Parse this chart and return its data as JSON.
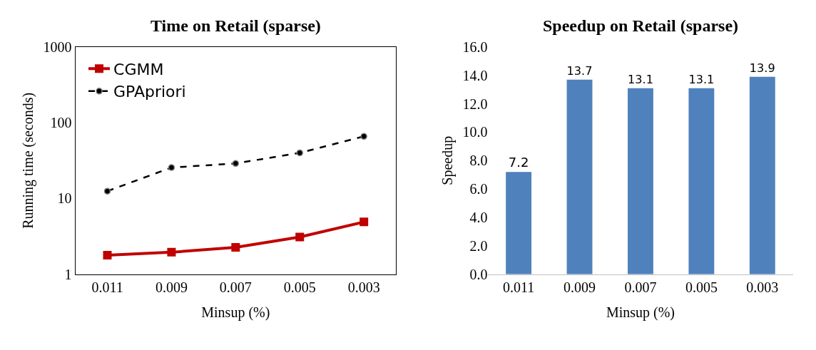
{
  "chart_data": [
    {
      "type": "line",
      "title": "Time on Retail (sparse)",
      "xlabel": "Minsup (%)",
      "ylabel": "Running time (seconds)",
      "categories": [
        "0.011",
        "0.009",
        "0.007",
        "0.005",
        "0.003"
      ],
      "log": "y",
      "ylim": [
        1,
        1000
      ],
      "yticks": [
        1,
        10,
        100,
        1000
      ],
      "legend": "top left",
      "series": [
        {
          "name": "CGMM",
          "color": "#c00000",
          "marker": "square",
          "line_style": "solid",
          "values": [
            1.78,
            1.95,
            2.26,
            3.1,
            4.9
          ]
        },
        {
          "name": "GPApriori",
          "color": "#000000",
          "marker": "circle",
          "line_style": "dashed",
          "values": [
            12.5,
            25.6,
            29,
            40,
            66
          ]
        }
      ]
    },
    {
      "type": "bar",
      "title": "Speedup on Retail (sparse)",
      "xlabel": "Minsup (%)",
      "ylabel": "Speedup",
      "categories": [
        "0.011",
        "0.009",
        "0.007",
        "0.005",
        "0.003"
      ],
      "ylim": [
        0,
        16
      ],
      "yticks": [
        {
          "value": 0,
          "label": "0.0"
        },
        {
          "value": 2,
          "label": "2.0"
        },
        {
          "value": 4,
          "label": "4.0"
        },
        {
          "value": 6,
          "label": "6.0"
        },
        {
          "value": 8,
          "label": "8.0"
        },
        {
          "value": 10,
          "label": "10.0"
        },
        {
          "value": 12,
          "label": "12.0"
        },
        {
          "value": 14,
          "label": "14.0"
        },
        {
          "value": 16,
          "label": "16.0"
        }
      ],
      "color": "#4f81bd",
      "values": [
        7.2,
        13.7,
        13.1,
        13.1,
        13.9
      ],
      "data_labels": true
    }
  ]
}
